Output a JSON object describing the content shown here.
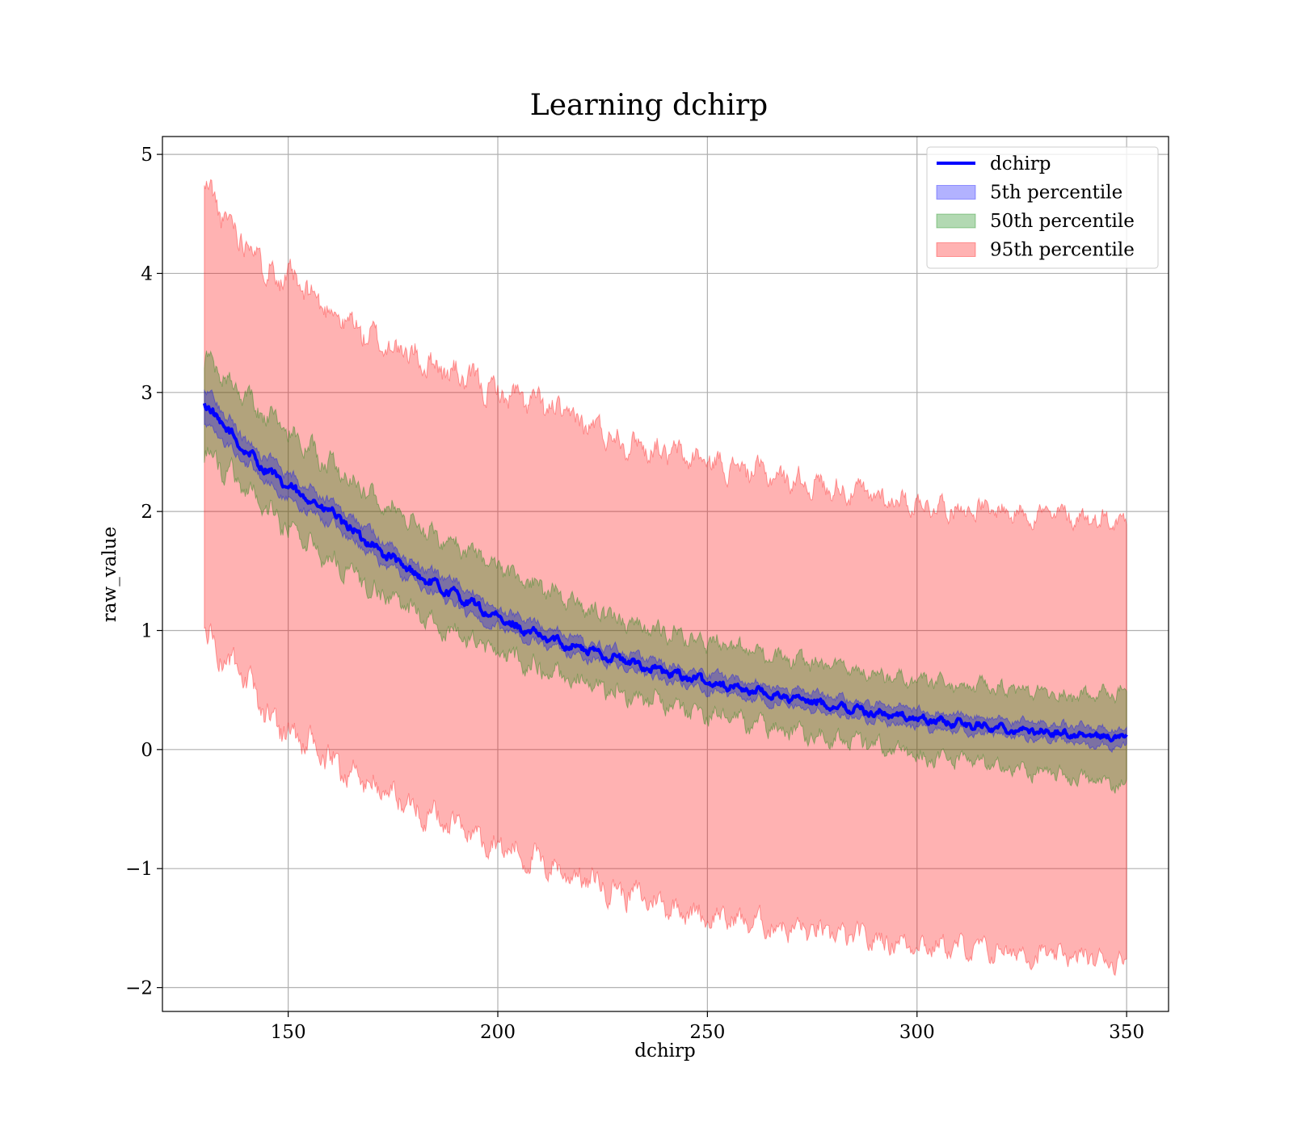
{
  "chart_data": {
    "type": "area",
    "title": "Learning dchirp",
    "xlabel": "dchirp",
    "ylabel": "raw_value",
    "xlim": [
      120,
      360
    ],
    "ylim": [
      -2.2,
      5.15
    ],
    "x_range": [
      130,
      350
    ],
    "xticks": [
      150,
      200,
      250,
      300,
      350
    ],
    "yticks": [
      -2,
      -1,
      0,
      1,
      2,
      3,
      4,
      5
    ],
    "ytick_labels": [
      "−2",
      "−1",
      "0",
      "1",
      "2",
      "3",
      "4",
      "5"
    ],
    "grid": true,
    "legend_position": "top-right",
    "legend": [
      {
        "label": "dchirp",
        "kind": "line",
        "color": "#0000ff"
      },
      {
        "label": "5th percentile",
        "kind": "band",
        "color": "#0000ff"
      },
      {
        "label": "50th percentile",
        "kind": "band",
        "color": "#008000"
      },
      {
        "label": "95th percentile",
        "kind": "band",
        "color": "#ff0000"
      }
    ],
    "series": [
      {
        "name": "dchirp",
        "kind": "line",
        "color": "#0000ff",
        "x": [
          130,
          135,
          140,
          145,
          150,
          155,
          160,
          165,
          170,
          175,
          180,
          185,
          190,
          195,
          200,
          210,
          220,
          230,
          240,
          250,
          260,
          270,
          280,
          290,
          300,
          310,
          320,
          330,
          340,
          350
        ],
        "y": [
          2.9,
          2.7,
          2.5,
          2.35,
          2.2,
          2.1,
          2.0,
          1.85,
          1.72,
          1.6,
          1.48,
          1.38,
          1.3,
          1.2,
          1.1,
          0.95,
          0.85,
          0.75,
          0.65,
          0.57,
          0.5,
          0.43,
          0.37,
          0.31,
          0.26,
          0.22,
          0.18,
          0.15,
          0.12,
          0.1
        ]
      },
      {
        "name": "5th percentile",
        "kind": "band",
        "color": "#0000ff",
        "x": [
          130,
          140,
          150,
          160,
          170,
          180,
          190,
          200,
          220,
          240,
          260,
          280,
          300,
          320,
          340,
          350
        ],
        "lower": [
          2.75,
          2.4,
          2.1,
          1.9,
          1.62,
          1.4,
          1.2,
          1.02,
          0.78,
          0.58,
          0.43,
          0.3,
          0.19,
          0.12,
          0.05,
          0.02
        ],
        "upper": [
          3.05,
          2.6,
          2.3,
          2.1,
          1.82,
          1.56,
          1.4,
          1.18,
          0.92,
          0.72,
          0.57,
          0.44,
          0.33,
          0.25,
          0.19,
          0.17
        ]
      },
      {
        "name": "50th percentile",
        "kind": "band",
        "color": "#008000",
        "x": [
          130,
          140,
          150,
          160,
          170,
          180,
          190,
          200,
          220,
          240,
          260,
          280,
          300,
          320,
          340,
          350
        ],
        "lower": [
          2.5,
          2.2,
          1.85,
          1.6,
          1.35,
          1.15,
          0.97,
          0.8,
          0.57,
          0.38,
          0.22,
          0.1,
          -0.05,
          -0.15,
          -0.25,
          -0.3
        ],
        "upper": [
          3.3,
          2.95,
          2.65,
          2.4,
          2.15,
          1.9,
          1.7,
          1.52,
          1.2,
          0.98,
          0.82,
          0.68,
          0.57,
          0.5,
          0.45,
          0.48
        ]
      },
      {
        "name": "95th percentile",
        "kind": "band",
        "color": "#ff0000",
        "x": [
          130,
          135,
          140,
          145,
          150,
          160,
          170,
          180,
          190,
          200,
          210,
          220,
          230,
          240,
          250,
          260,
          270,
          280,
          290,
          300,
          310,
          320,
          330,
          340,
          350
        ],
        "lower": [
          1.0,
          0.75,
          0.55,
          0.3,
          0.15,
          -0.1,
          -0.3,
          -0.48,
          -0.65,
          -0.8,
          -0.95,
          -1.08,
          -1.2,
          -1.3,
          -1.4,
          -1.45,
          -1.5,
          -1.56,
          -1.6,
          -1.63,
          -1.67,
          -1.7,
          -1.73,
          -1.75,
          -1.78
        ],
        "upper": [
          4.75,
          4.45,
          4.3,
          4.05,
          3.95,
          3.7,
          3.45,
          3.3,
          3.15,
          3.0,
          2.9,
          2.75,
          2.6,
          2.5,
          2.42,
          2.35,
          2.27,
          2.2,
          2.13,
          2.07,
          2.03,
          2.0,
          1.98,
          1.95,
          1.92
        ]
      }
    ]
  }
}
